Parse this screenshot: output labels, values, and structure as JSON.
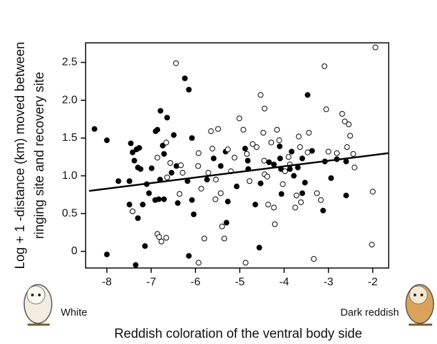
{
  "chart_data": {
    "type": "scatter",
    "ylabel_lines": [
      "Log + 1 -distance (km) moved between",
      "ringing site and recovery site"
    ],
    "xlabel": "Reddish coloration of the ventral body side",
    "left_note": "White",
    "right_note": "Dark reddish",
    "xlim": [
      -8.48,
      -1.64
    ],
    "ylim": [
      -0.22,
      2.76
    ],
    "xticks": [
      -8,
      -7,
      -6,
      -5,
      -4,
      -3,
      -2
    ],
    "yticks": [
      0,
      0.5,
      {
        "value": 1,
        "label": "1.0"
      },
      1.5,
      {
        "value": 2,
        "label": "2.0"
      },
      2.5
    ],
    "series": [
      {
        "color": "#000000",
        "filled": true,
        "x": [
          -8.28,
          -8.0,
          -8.0,
          -7.74,
          -7.49,
          -7.49,
          -7.46,
          -7.42,
          -7.38,
          -7.33,
          -7.3,
          -7.27,
          -7.24,
          -7.35,
          -7.3,
          -7.19,
          -7.14,
          -7.1,
          -7.05,
          -6.99,
          -6.9,
          -6.86,
          -6.79,
          -6.74,
          -6.71,
          -6.8,
          -6.91,
          -6.83,
          -6.71,
          -6.64,
          -6.49,
          -6.43,
          -6.4,
          -6.54,
          -6.24,
          -6.15,
          -6.18,
          -6.08,
          -6.08,
          -6.15,
          -6.04,
          -5.74,
          -5.59,
          -5.43,
          -5.3,
          -5.27,
          -5.32,
          -5.07,
          -4.88,
          -4.82,
          -4.81,
          -4.53,
          -4.65,
          -4.56,
          -4.34,
          -4.23,
          -4.09,
          -4.1,
          -4.07,
          -4.06,
          -3.87,
          -3.83,
          -3.78,
          -3.69,
          -3.59,
          -3.59,
          -3.53,
          -3.47,
          -3.37,
          -3.12,
          -3.08,
          -2.94,
          -2.81,
          -2.6,
          -2.6
        ],
        "values": [
          1.62,
          1.47,
          -0.04,
          0.93,
          0.93,
          0.62,
          1.43,
          1.31,
          1.2,
          1.35,
          1.11,
          1.37,
          1.09,
          -0.18,
          0.44,
          0.62,
          0.07,
          0.89,
          0.77,
          1.1,
          1.59,
          1.61,
          1.86,
          1.4,
          1.29,
          0.95,
          0.68,
          0.69,
          0.69,
          1.77,
          1.54,
          1.13,
          0.64,
          1.04,
          2.29,
          2.14,
          0.93,
          1.5,
          0.68,
          -0.06,
          0.49,
          0.95,
          1.23,
          1.13,
          0.38,
          0.66,
          1.32,
          0.86,
          1.36,
          1.2,
          1.09,
          0.9,
          0.62,
          0.05,
          1.18,
          1.15,
          1.23,
          1.39,
          1.09,
          0.76,
          1.09,
          1.32,
          1.0,
          1.11,
          1.23,
          0.77,
          0.91,
          2.07,
          1.33,
          0.54,
          1.19,
          0.97,
          1.22,
          1.19,
          0.74
        ]
      },
      {
        "color": "#000000",
        "filled": false,
        "x": [
          -7.42,
          -6.86,
          -6.82,
          -6.77,
          -6.66,
          -6.86,
          -6.57,
          -6.66,
          -6.64,
          -6.44,
          -6.33,
          -6.29,
          -6.36,
          -5.93,
          -5.94,
          -5.93,
          -5.87,
          -5.8,
          -5.71,
          -5.65,
          -5.62,
          -5.55,
          -5.54,
          -5.49,
          -5.43,
          -5.4,
          -5.35,
          -5.27,
          -5.2,
          -5.12,
          -5.01,
          -4.92,
          -4.87,
          -4.84,
          -4.78,
          -4.71,
          -4.62,
          -4.53,
          -4.44,
          -4.47,
          -4.45,
          -4.44,
          -4.38,
          -4.36,
          -4.29,
          -4.23,
          -4.21,
          -4.16,
          -4.11,
          -4.03,
          -3.98,
          -3.9,
          -3.87,
          -3.75,
          -3.72,
          -3.67,
          -3.64,
          -3.62,
          -3.47,
          -3.44,
          -3.33,
          -3.26,
          -3.17,
          -3.09,
          -3.05,
          -3.0,
          -2.81,
          -2.69,
          -2.63,
          -2.58,
          -2.54,
          -2.51,
          -2.44,
          -2.41,
          -1.94,
          -2.0,
          -2.02
        ],
        "values": [
          0.53,
          0.23,
          0.19,
          0.13,
          0.18,
          1.24,
          1.17,
          1.44,
          0.98,
          2.49,
          1.14,
          1.04,
          0.76,
          -0.15,
          1.13,
          1.3,
          0.83,
          0.17,
          1.04,
          1.59,
          1.36,
          0.69,
          0.95,
          1.62,
          0.77,
          0.33,
          0.17,
          1.35,
          1.06,
          1.24,
          1.76,
          1.61,
          -0.15,
          1.29,
          0.93,
          1.42,
          1.38,
          2.07,
          1.89,
          1.57,
          1.2,
          1.02,
          0.99,
          0.62,
          1.44,
          0.58,
          0.36,
          1.61,
          1.47,
          0.89,
          1.06,
          1.25,
          1.15,
          0.58,
          0.74,
          1.52,
          1.38,
          0.65,
          1.31,
          1.57,
          -0.1,
          0.77,
          0.68,
          2.45,
          1.88,
          1.32,
          1.3,
          1.82,
          1.72,
          1.38,
          1.68,
          1.53,
          1.29,
          1.11,
          2.7,
          0.79,
          0.09
        ]
      }
    ],
    "trend_line": {
      "color": "#000000",
      "x": [
        -8.4,
        -1.65
      ],
      "values": [
        0.8,
        1.3
      ]
    }
  }
}
